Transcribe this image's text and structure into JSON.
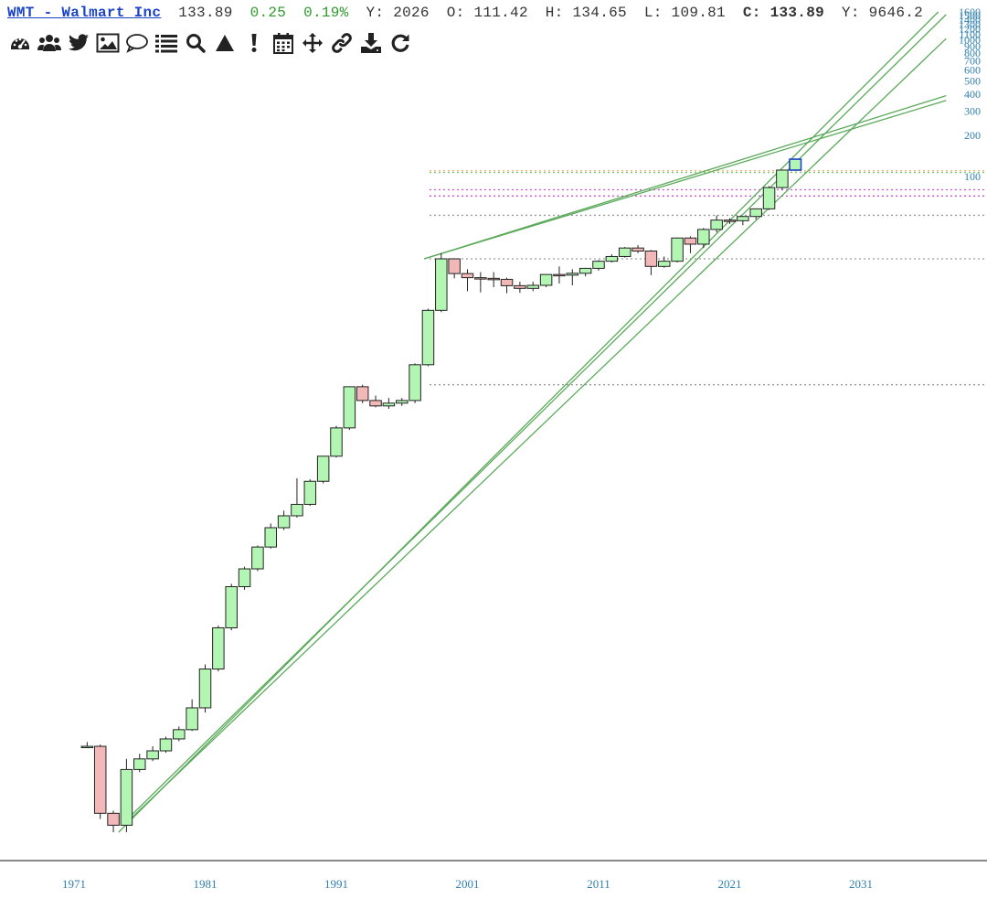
{
  "header": {
    "symbol": "WMT - Walmart Inc",
    "last": "133.89",
    "change": "0.25",
    "change_pct": "0.19%",
    "year_label": "Y:",
    "year_value": "2026",
    "open_label": "O:",
    "open_value": "111.42",
    "high_label": "H:",
    "high_value": "134.65",
    "low_label": "L:",
    "low_value": "109.81",
    "close_label": "C:",
    "close_value": "133.89",
    "y2_label": "Y:",
    "y2_value": "9646.2"
  },
  "toolbar": [
    {
      "name": "dashboard-icon"
    },
    {
      "name": "users-icon"
    },
    {
      "name": "twitter-icon"
    },
    {
      "name": "image-icon"
    },
    {
      "name": "comment-icon"
    },
    {
      "name": "list-icon"
    },
    {
      "name": "search-icon"
    },
    {
      "name": "triangle-icon"
    },
    {
      "name": "exclamation-icon"
    },
    {
      "name": "calendar-icon"
    },
    {
      "name": "move-icon"
    },
    {
      "name": "link-icon"
    },
    {
      "name": "download-icon"
    },
    {
      "name": "refresh-icon"
    }
  ],
  "colors": {
    "up": "#b3f5b3",
    "down": "#f2b8b8",
    "trend": "#5aaa5a",
    "axis": "#2f7fb0",
    "last_bar": "#1a43c8"
  },
  "chart_data": {
    "type": "candlestick",
    "period": "yearly",
    "y_scale": "log",
    "x_ticks": [
      "1971",
      "1981",
      "1991",
      "2001",
      "2011",
      "2021",
      "2031"
    ],
    "y_ticks": [
      "100",
      "200",
      "300",
      "400",
      "500",
      "600",
      "700",
      "800",
      "900",
      "1000",
      "1100",
      "1200",
      "1300",
      "1400",
      "1500",
      "1600"
    ],
    "years": [
      1972,
      1973,
      1974,
      1975,
      1976,
      1977,
      1978,
      1979,
      1980,
      1981,
      1982,
      1983,
      1984,
      1985,
      1986,
      1987,
      1988,
      1989,
      1990,
      1991,
      1992,
      1993,
      1994,
      1995,
      1996,
      1997,
      1998,
      1999,
      2000,
      2001,
      2002,
      2003,
      2004,
      2005,
      2006,
      2007,
      2008,
      2009,
      2010,
      2011,
      2012,
      2013,
      2014,
      2015,
      2016,
      2017,
      2018,
      2019,
      2020,
      2021,
      2022,
      2023,
      2024,
      2025,
      2026
    ],
    "open": [
      0.0068,
      0.0068,
      0.0022,
      0.0018,
      0.0046,
      0.0055,
      0.0063,
      0.0077,
      0.009,
      0.013,
      0.025,
      0.05,
      0.1,
      0.135,
      0.195,
      0.27,
      0.33,
      0.4,
      0.59,
      0.9,
      1.45,
      2.9,
      2.3,
      2.1,
      2.2,
      2.3,
      4.2,
      10.5,
      25.0,
      19.5,
      18.2,
      18.0,
      17.7,
      15.9,
      15.2,
      16.0,
      19.2,
      19.0,
      19.6,
      21.3,
      24.0,
      26.0,
      30.0,
      28.5,
      22.0,
      24.0,
      35.5,
      32.0,
      41.0,
      48.0,
      47.5,
      51.0,
      58.0,
      83.0,
      111.42
    ],
    "high": [
      0.0073,
      0.007,
      0.0023,
      0.0055,
      0.006,
      0.0068,
      0.008,
      0.0095,
      0.015,
      0.027,
      0.052,
      0.105,
      0.14,
      0.2,
      0.29,
      0.36,
      0.62,
      0.61,
      0.9,
      1.5,
      2.9,
      3.0,
      2.5,
      2.4,
      2.4,
      4.3,
      10.8,
      27.5,
      25.2,
      21.0,
      20.0,
      20.0,
      18.2,
      17.0,
      17.0,
      19.3,
      22.0,
      21.0,
      21.5,
      24.5,
      27.0,
      30.5,
      31.5,
      29.0,
      26.0,
      35.8,
      36.5,
      42.0,
      52.0,
      49.5,
      51.5,
      58.5,
      85.0,
      112.0,
      134.65
    ],
    "low": [
      0.0066,
      0.002,
      0.0016,
      0.0016,
      0.0044,
      0.0053,
      0.0061,
      0.0074,
      0.0088,
      0.012,
      0.024,
      0.048,
      0.095,
      0.13,
      0.19,
      0.26,
      0.32,
      0.39,
      0.57,
      0.88,
      1.4,
      2.2,
      2.05,
      2.0,
      2.1,
      2.2,
      4.1,
      10.2,
      18.0,
      14.5,
      14.2,
      15.5,
      14.0,
      14.1,
      14.5,
      15.5,
      16.5,
      16.0,
      18.6,
      20.5,
      23.5,
      25.5,
      27.5,
      19.0,
      21.5,
      23.5,
      27.5,
      30.0,
      39.0,
      45.0,
      44.0,
      48.5,
      57.0,
      80.0,
      109.81
    ],
    "close": [
      0.0068,
      0.0022,
      0.0018,
      0.0046,
      0.0055,
      0.0063,
      0.0077,
      0.009,
      0.013,
      0.025,
      0.05,
      0.1,
      0.135,
      0.195,
      0.27,
      0.33,
      0.4,
      0.59,
      0.9,
      1.45,
      2.9,
      2.3,
      2.1,
      2.2,
      2.3,
      4.2,
      10.5,
      25.0,
      19.5,
      18.2,
      18.0,
      17.7,
      15.9,
      15.2,
      16.0,
      19.2,
      19.0,
      19.6,
      21.3,
      24.0,
      26.0,
      30.0,
      28.5,
      22.0,
      24.0,
      35.5,
      32.0,
      41.0,
      48.0,
      47.5,
      51.0,
      58.0,
      83.0,
      111.42,
      133.89
    ],
    "ref_lines": [
      {
        "value": 110.0,
        "style": "orange-dotted"
      },
      {
        "value": 107.0,
        "style": "green-dotted"
      },
      {
        "value": 80.0,
        "style": "magenta-dotted"
      },
      {
        "value": 72.0,
        "style": "magenta-dotted"
      },
      {
        "value": 52.0,
        "style": "gray-dotted"
      },
      {
        "value": 25.0,
        "style": "gray-dotted"
      },
      {
        "value": 3.0,
        "style": "gray-dotted"
      }
    ],
    "trend_lines": [
      {
        "from": [
          1997.7,
          25.0
        ],
        "to": [
          2037.5,
          360.0
        ]
      },
      {
        "from": [
          1997.7,
          25.0
        ],
        "to": [
          2037.5,
          390.0
        ]
      },
      {
        "from": [
          1974.4,
          0.0016
        ],
        "to": [
          2036.9,
          1600.0
        ]
      },
      {
        "from": [
          1974.6,
          0.0018
        ],
        "to": [
          2037.5,
          1530.0
        ]
      },
      {
        "from": [
          1974.8,
          0.0018
        ],
        "to": [
          2037.5,
          1020.0
        ]
      }
    ]
  }
}
